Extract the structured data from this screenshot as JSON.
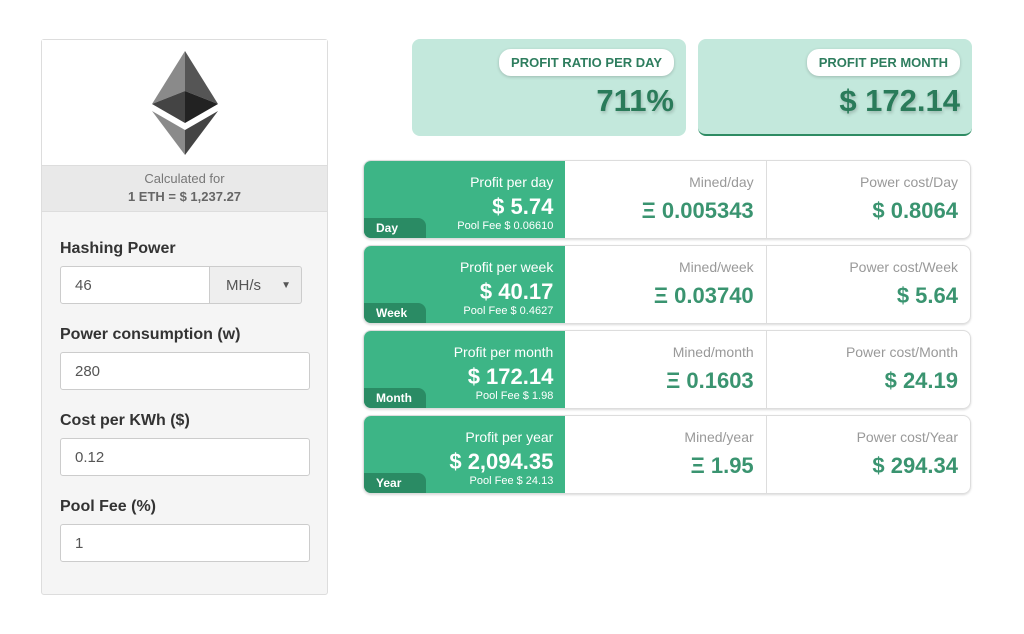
{
  "sidebar": {
    "calc_label": "Calculated for",
    "rate": "1 ETH = $ 1,237.27",
    "hashing_label": "Hashing Power",
    "hashing_value": "46",
    "hashing_unit": "MH/s",
    "power_label": "Power consumption (w)",
    "power_value": "280",
    "cost_label": "Cost per KWh ($)",
    "cost_value": "0.12",
    "fee_label": "Pool Fee (%)",
    "fee_value": "1"
  },
  "summary": [
    {
      "label": "PROFIT RATIO PER DAY",
      "value": "711%"
    },
    {
      "label": "PROFIT PER MONTH",
      "value": "$ 172.14"
    }
  ],
  "rows": [
    {
      "tag": "Day",
      "profit_label": "Profit per day",
      "profit": "$ 5.74",
      "fee": "Pool Fee $ 0.06610",
      "mined_label": "Mined/day",
      "mined": "Ξ 0.005343",
      "power_label": "Power cost/Day",
      "power": "$ 0.8064"
    },
    {
      "tag": "Week",
      "profit_label": "Profit per week",
      "profit": "$ 40.17",
      "fee": "Pool Fee $ 0.4627",
      "mined_label": "Mined/week",
      "mined": "Ξ 0.03740",
      "power_label": "Power cost/Week",
      "power": "$ 5.64"
    },
    {
      "tag": "Month",
      "profit_label": "Profit per month",
      "profit": "$ 172.14",
      "fee": "Pool Fee $ 1.98",
      "mined_label": "Mined/month",
      "mined": "Ξ 0.1603",
      "power_label": "Power cost/Month",
      "power": "$ 24.19"
    },
    {
      "tag": "Year",
      "profit_label": "Profit per year",
      "profit": "$ 2,094.35",
      "fee": "Pool Fee $ 24.13",
      "mined_label": "Mined/year",
      "mined": "Ξ 1.95",
      "power_label": "Power cost/Year",
      "power": "$ 294.34"
    }
  ],
  "colors": {
    "accent": "#3db586",
    "accent_dark": "#2a8b64",
    "summary_bg": "#c3e8dc",
    "value_text": "#3a9470"
  },
  "icons": {
    "logo": "ethereum-logo"
  }
}
